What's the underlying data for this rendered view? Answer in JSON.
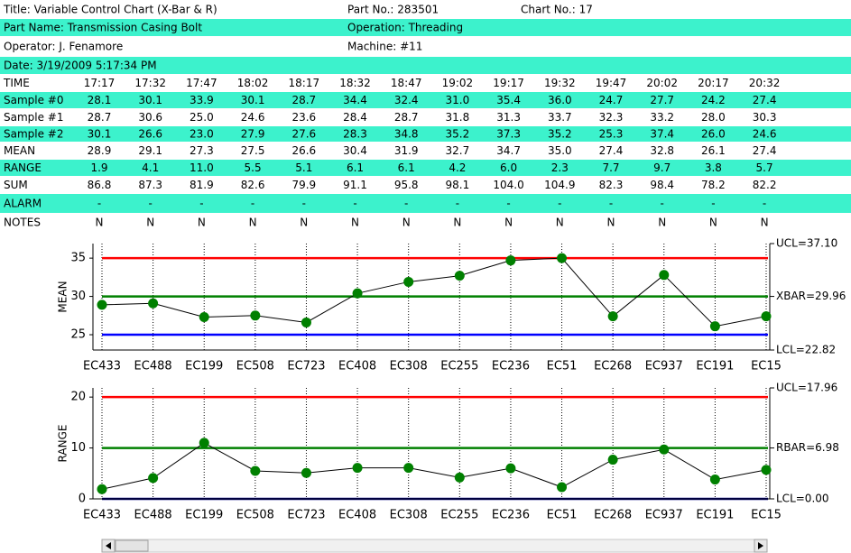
{
  "header": {
    "rows": [
      [
        "Title: Variable Control Chart (X-Bar & R)",
        "Part No.: 283501",
        "Chart No.: 17"
      ],
      [
        "Part Name: Transmission Casing Bolt",
        "Operation: Threading"
      ],
      [
        "Operator: J. Fenamore",
        "Machine: #11"
      ],
      [
        "Date: 3/19/2009 5:17:34 PM"
      ]
    ]
  },
  "table": {
    "rows": [
      {
        "label": "TIME",
        "cells": [
          "17:17",
          "17:32",
          "17:47",
          "18:02",
          "18:17",
          "18:32",
          "18:47",
          "19:02",
          "19:17",
          "19:32",
          "19:47",
          "20:02",
          "20:17",
          "20:32"
        ]
      },
      {
        "label": "Sample #0",
        "cells": [
          "28.1",
          "30.1",
          "33.9",
          "30.1",
          "28.7",
          "34.4",
          "32.4",
          "31.0",
          "35.4",
          "36.0",
          "24.7",
          "27.7",
          "24.2",
          "27.4"
        ]
      },
      {
        "label": "Sample #1",
        "cells": [
          "28.7",
          "30.6",
          "25.0",
          "24.6",
          "23.6",
          "28.4",
          "28.7",
          "31.8",
          "31.3",
          "33.7",
          "32.3",
          "33.2",
          "28.0",
          "30.3"
        ]
      },
      {
        "label": "Sample #2",
        "cells": [
          "30.1",
          "26.6",
          "23.0",
          "27.9",
          "27.6",
          "28.3",
          "34.8",
          "35.2",
          "37.3",
          "35.2",
          "25.3",
          "37.4",
          "26.0",
          "24.6"
        ]
      },
      {
        "label": "MEAN",
        "cells": [
          "28.9",
          "29.1",
          "27.3",
          "27.5",
          "26.6",
          "30.4",
          "31.9",
          "32.7",
          "34.7",
          "35.0",
          "27.4",
          "32.8",
          "26.1",
          "27.4"
        ]
      },
      {
        "label": "RANGE",
        "cells": [
          "1.9",
          "4.1",
          "11.0",
          "5.5",
          "5.1",
          "6.1",
          "6.1",
          "4.2",
          "6.0",
          "2.3",
          "7.7",
          "9.7",
          "3.8",
          "5.7"
        ]
      },
      {
        "label": "SUM",
        "cells": [
          "86.8",
          "87.3",
          "81.9",
          "82.6",
          "79.9",
          "91.1",
          "95.8",
          "98.1",
          "104.0",
          "104.9",
          "82.3",
          "98.4",
          "78.2",
          "82.2"
        ]
      },
      {
        "label": "ALARM",
        "cells": [
          "-",
          "-",
          "-",
          "-",
          "-",
          "-",
          "-",
          "-",
          "-",
          "-",
          "-",
          "-",
          "-",
          "-"
        ]
      },
      {
        "label": "NOTES",
        "cells": [
          "N",
          "N",
          "N",
          "N",
          "N",
          "N",
          "N",
          "N",
          "N",
          "N",
          "N",
          "N",
          "N",
          "N"
        ]
      }
    ]
  },
  "chart_data": [
    {
      "type": "line",
      "y_label": "MEAN",
      "categories": [
        "EC433",
        "EC488",
        "EC199",
        "EC508",
        "EC723",
        "EC408",
        "EC308",
        "EC255",
        "EC236",
        "EC51",
        "EC268",
        "EC937",
        "EC191",
        "EC15"
      ],
      "values": [
        28.9,
        29.1,
        27.3,
        27.5,
        26.6,
        30.4,
        31.9,
        32.7,
        34.7,
        35.0,
        27.4,
        32.8,
        26.1,
        27.4
      ],
      "color": "#000000",
      "marker_color": "#008000",
      "ylim": [
        23.0,
        36.9
      ],
      "yticks": [
        25,
        30,
        35
      ],
      "lines": [
        {
          "value": 35,
          "color": "#ff0000"
        },
        {
          "value": 30,
          "color": "#008000"
        },
        {
          "value": 25,
          "color": "#0000ff"
        }
      ],
      "limit_labels": [
        "UCL=37.10",
        "XBAR=29.96",
        "LCL=22.82"
      ]
    },
    {
      "type": "line",
      "y_label": "RANGE",
      "categories": [
        "EC433",
        "EC488",
        "EC199",
        "EC508",
        "EC723",
        "EC408",
        "EC308",
        "EC255",
        "EC236",
        "EC51",
        "EC268",
        "EC937",
        "EC191",
        "EC15"
      ],
      "values": [
        1.9,
        4.1,
        11.0,
        5.5,
        5.1,
        6.1,
        6.1,
        4.2,
        6.0,
        2.3,
        7.7,
        9.7,
        3.8,
        5.7
      ],
      "color": "#000000",
      "marker_color": "#008000",
      "ylim": [
        0,
        21.8
      ],
      "yticks": [
        0,
        10,
        20
      ],
      "lines": [
        {
          "value": 20,
          "color": "#ff0000"
        },
        {
          "value": 10,
          "color": "#008000"
        },
        {
          "value": 0,
          "color": "#000080"
        }
      ],
      "limit_labels": [
        "UCL=17.96",
        "RBAR=6.98",
        "LCL=0.00"
      ]
    }
  ]
}
